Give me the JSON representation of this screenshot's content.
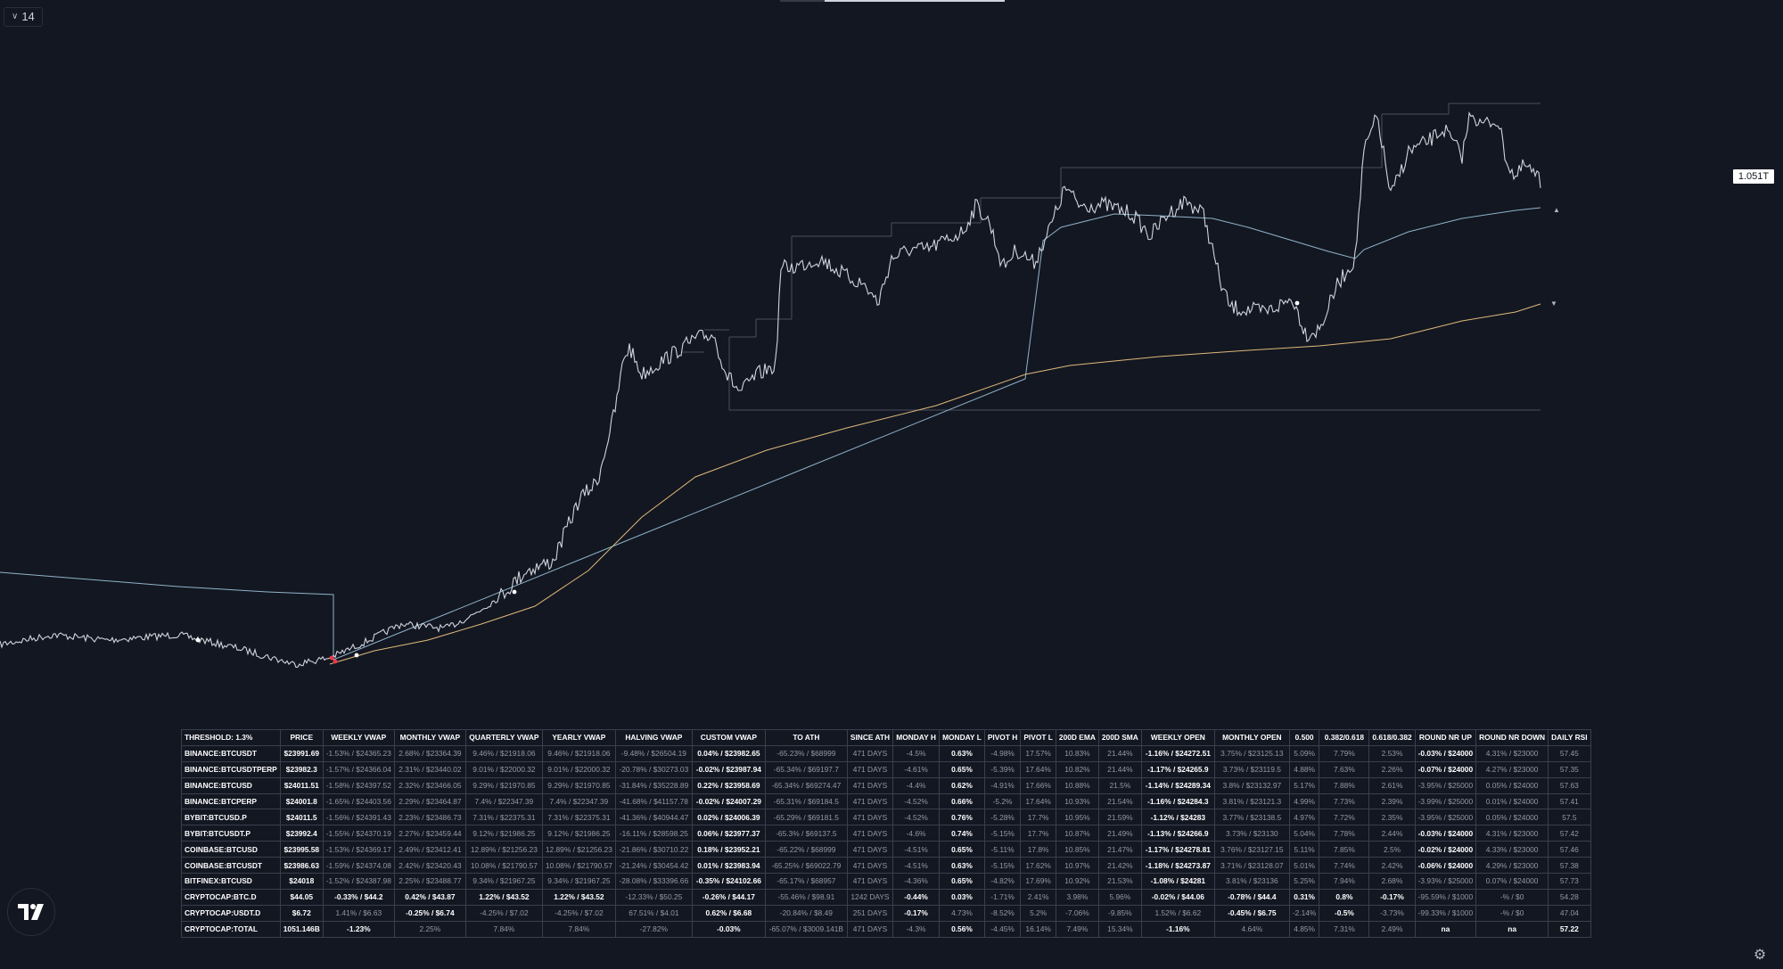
{
  "toolbar": {
    "interval": "14"
  },
  "price_scale": {
    "last_price": "1.051T"
  },
  "colors": {
    "background": "#131722",
    "price_line": "#d1d4dc",
    "vwap_blue": "#8fb4c9",
    "vwap_orange": "#e0b97a",
    "level_line": "#4a4f5c",
    "marker_red": "#f23645"
  },
  "icons": {
    "logo": "tradingview-logo-icon",
    "settings": "gear-icon",
    "interval": "chevron-down-icon"
  },
  "table": {
    "headers": [
      "THRESHOLD: 1.3%",
      "PRICE",
      "WEEKLY VWAP",
      "MONTHLY VWAP",
      "QUARTERLY VWAP",
      "YEARLY VWAP",
      "HALVING VWAP",
      "CUSTOM VWAP",
      "TO ATH",
      "SINCE ATH",
      "MONDAY H",
      "MONDAY L",
      "PIVOT H",
      "PIVOT L",
      "200D EMA",
      "200D SMA",
      "WEEKLY OPEN",
      "MONTHLY OPEN",
      "0.500",
      "0.382/0.618",
      "0.618/0.382",
      "ROUND NR UP",
      "ROUND NR DOWN",
      "DAILY RSI"
    ],
    "rows": [
      [
        "BINANCE:BTCUSDT",
        "$23991.69",
        "-1.53% / $24365.23",
        "2.68% / $23364.39",
        "9.46% / $21918.06",
        "9.46% / $21918.06",
        "-9.48% / $26504.19",
        "0.04% / $23982.65",
        "-65.23% / $68999",
        "471 DAYS",
        "-4.5%",
        "0.63%",
        "-4.98%",
        "17.57%",
        "10.83%",
        "21.44%",
        "-1.16% / $24272.51",
        "3.75% / $23125.13",
        "5.09%",
        "7.79%",
        "2.53%",
        "-0.03% / $24000",
        "4.31% / $23000",
        "57.45"
      ],
      [
        "BINANCE:BTCUSDTPERP",
        "$23982.3",
        "-1.57% / $24366.04",
        "2.31% / $23440.02",
        "9.01% / $22000.32",
        "9.01% / $22000.32",
        "-20.78% / $30273.03",
        "-0.02% / $23987.94",
        "-65.34% / $69197.7",
        "471 DAYS",
        "-4.61%",
        "0.65%",
        "-5.39%",
        "17.64%",
        "10.82%",
        "21.44%",
        "-1.17% / $24265.9",
        "3.73% / $23119.5",
        "4.88%",
        "7.63%",
        "2.26%",
        "-0.07% / $24000",
        "4.27% / $23000",
        "57.35"
      ],
      [
        "BINANCE:BTCUSD",
        "$24011.51",
        "-1.58% / $24397.52",
        "2.32% / $23466.05",
        "9.29% / $21970.85",
        "9.29% / $21970.85",
        "-31.84% / $35228.89",
        "0.22% / $23958.69",
        "-65.34% / $69274.47",
        "471 DAYS",
        "-4.4%",
        "0.62%",
        "-4.91%",
        "17.66%",
        "10.88%",
        "21.5%",
        "-1.14% / $24289.34",
        "3.8% / $23132.97",
        "5.17%",
        "7.88%",
        "2.61%",
        "-3.95% / $25000",
        "0.05% / $24000",
        "57.63"
      ],
      [
        "BINANCE:BTCPERP",
        "$24001.8",
        "-1.65% / $24403.56",
        "2.29% / $23464.87",
        "7.4% / $22347.39",
        "7.4% / $22347.39",
        "-41.68% / $41157.78",
        "-0.02% / $24007.29",
        "-65.31% / $69184.5",
        "471 DAYS",
        "-4.52%",
        "0.66%",
        "-5.2%",
        "17.64%",
        "10.93%",
        "21.54%",
        "-1.16% / $24284.3",
        "3.81% / $23121.3",
        "4.99%",
        "7.73%",
        "2.39%",
        "-3.99% / $25000",
        "0.01% / $24000",
        "57.41"
      ],
      [
        "BYBIT:BTCUSD.P",
        "$24011.5",
        "-1.56% / $24391.43",
        "2.23% / $23486.73",
        "7.31% / $22375.31",
        "7.31% / $22375.31",
        "-41.36% / $40944.47",
        "0.02% / $24006.39",
        "-65.29% / $69181.5",
        "471 DAYS",
        "-4.52%",
        "0.76%",
        "-5.28%",
        "17.7%",
        "10.95%",
        "21.59%",
        "-1.12% / $24283",
        "3.77% / $23138.5",
        "4.97%",
        "7.72%",
        "2.35%",
        "-3.95% / $25000",
        "0.05% / $24000",
        "57.5"
      ],
      [
        "BYBIT:BTCUSDT.P",
        "$23992.4",
        "-1.55% / $24370.19",
        "2.27% / $23459.44",
        "9.12% / $21986.25",
        "9.12% / $21986.25",
        "-16.11% / $28598.25",
        "0.06% / $23977.37",
        "-65.3% / $69137.5",
        "471 DAYS",
        "-4.6%",
        "0.74%",
        "-5.15%",
        "17.7%",
        "10.87%",
        "21.49%",
        "-1.13% / $24266.9",
        "3.73% / $23130",
        "5.04%",
        "7.78%",
        "2.44%",
        "-0.03% / $24000",
        "4.31% / $23000",
        "57.42"
      ],
      [
        "COINBASE:BTCUSD",
        "$23995.58",
        "-1.53% / $24369.17",
        "2.49% / $23412.41",
        "12.89% / $21256.23",
        "12.89% / $21256.23",
        "-21.86% / $30710.22",
        "0.18% / $23952.21",
        "-65.22% / $68999",
        "471 DAYS",
        "-4.51%",
        "0.65%",
        "-5.11%",
        "17.8%",
        "10.85%",
        "21.47%",
        "-1.17% / $24278.81",
        "3.76% / $23127.15",
        "5.11%",
        "7.85%",
        "2.5%",
        "-0.02% / $24000",
        "4.33% / $23000",
        "57.46"
      ],
      [
        "COINBASE:BTCUSDT",
        "$23986.63",
        "-1.59% / $24374.08",
        "2.42% / $23420.43",
        "10.08% / $21790.57",
        "10.08% / $21790.57",
        "-21.24% / $30454.42",
        "0.01% / $23983.94",
        "-65.25% / $69022.79",
        "471 DAYS",
        "-4.51%",
        "0.63%",
        "-5.15%",
        "17.62%",
        "10.97%",
        "21.42%",
        "-1.18% / $24273.87",
        "3.71% / $23128.07",
        "5.01%",
        "7.74%",
        "2.42%",
        "-0.06% / $24000",
        "4.29% / $23000",
        "57.38"
      ],
      [
        "BITFINEX:BTCUSD",
        "$24018",
        "-1.52% / $24387.98",
        "2.25% / $23488.77",
        "9.34% / $21967.25",
        "9.34% / $21967.25",
        "-28.08% / $33396.66",
        "-0.35% / $24102.66",
        "-65.17% / $68957",
        "471 DAYS",
        "-4.36%",
        "0.65%",
        "-4.82%",
        "17.69%",
        "10.92%",
        "21.53%",
        "-1.08% / $24281",
        "3.81% / $23136",
        "5.25%",
        "7.94%",
        "2.68%",
        "-3.93% / $25000",
        "0.07% / $24000",
        "57.73"
      ],
      [
        "CRYPTOCAP:BTC.D",
        "$44.05",
        "-0.33% / $44.2",
        "0.42% / $43.87",
        "1.22% / $43.52",
        "1.22% / $43.52",
        "-12.33% / $50.25",
        "-0.26% / $44.17",
        "-55.46% / $98.91",
        "1242 DAYS",
        "-0.44%",
        "0.03%",
        "-1.71%",
        "2.41%",
        "3.98%",
        "5.96%",
        "-0.02% / $44.06",
        "-0.78% / $44.4",
        "0.31%",
        "0.8%",
        "-0.17%",
        "-95.59% / $1000",
        "-% / $0",
        "54.28"
      ],
      [
        "CRYPTOCAP:USDT.D",
        "$6.72",
        "1.41% / $6.63",
        "-0.25% / $6.74",
        "-4.25% / $7.02",
        "-4.25% / $7.02",
        "67.51% / $4.01",
        "0.62% / $6.68",
        "-20.84% / $8.49",
        "251 DAYS",
        "-0.17%",
        "4.73%",
        "-8.52%",
        "5.2%",
        "-7.06%",
        "-9.85%",
        "1.52% / $6.62",
        "-0.45% / $6.75",
        "-2.14%",
        "-0.5%",
        "-3.73%",
        "-99.33% / $1000",
        "-% / $0",
        "47.04"
      ],
      [
        "CRYPTOCAP:TOTAL",
        "1051.146B",
        "-1.23%",
        "2.25%",
        "7.84%",
        "7.84%",
        "-27.82%",
        "-0.03%",
        "-65.07% / $3009.141B",
        "471 DAYS",
        "-4.3%",
        "0.56%",
        "-4.45%",
        "16.14%",
        "7.49%",
        "15.34%",
        "-1.16%",
        "4.64%",
        "4.85%",
        "7.31%",
        "2.49%",
        "na",
        "na",
        "57.22"
      ]
    ],
    "highlight": [
      [
        0,
        1,
        7,
        11,
        16,
        21
      ],
      [
        0,
        1,
        7,
        11,
        16,
        21
      ],
      [
        0,
        1,
        7,
        11,
        16
      ],
      [
        0,
        1,
        7,
        11,
        16
      ],
      [
        0,
        1,
        7,
        11,
        16
      ],
      [
        0,
        1,
        7,
        11,
        16,
        21
      ],
      [
        0,
        1,
        7,
        11,
        16,
        21
      ],
      [
        0,
        1,
        7,
        11,
        16,
        21
      ],
      [
        0,
        1,
        7,
        11,
        16
      ],
      [
        0,
        1,
        2,
        3,
        4,
        5,
        7,
        10,
        11,
        16,
        17,
        18,
        19,
        20
      ],
      [
        0,
        1,
        3,
        7,
        10,
        17,
        19
      ],
      [
        0,
        1,
        2,
        7,
        11,
        16,
        21,
        22,
        23
      ]
    ]
  }
}
